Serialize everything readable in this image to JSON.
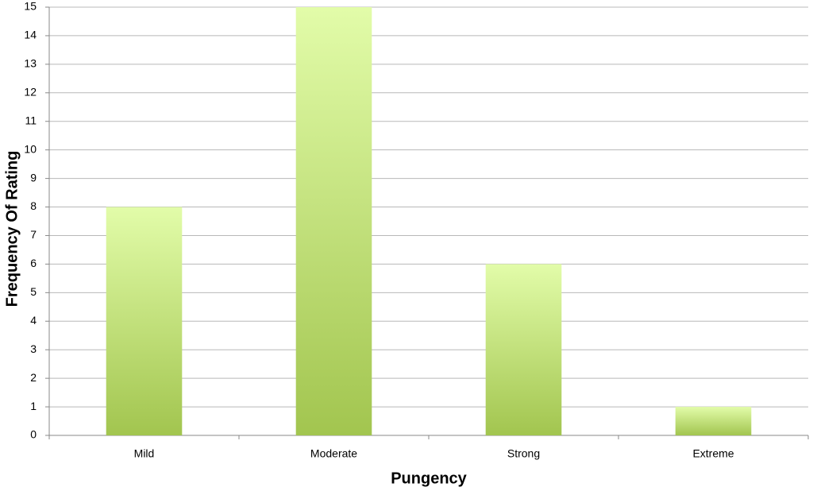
{
  "chart_data": {
    "type": "bar",
    "x_label": "Pungency",
    "y_label": "Frequency Of Rating",
    "categories": [
      "Mild",
      "Moderate",
      "Strong",
      "Extreme"
    ],
    "values": [
      8,
      15,
      6,
      1
    ],
    "color_top": "#e2fca9",
    "color_bottom": "#a2c54f",
    "ylim": [
      0,
      15
    ],
    "yticks": [
      0,
      1,
      2,
      3,
      4,
      5,
      6,
      7,
      8,
      9,
      10,
      11,
      12,
      13,
      14,
      15
    ],
    "grid": true
  }
}
